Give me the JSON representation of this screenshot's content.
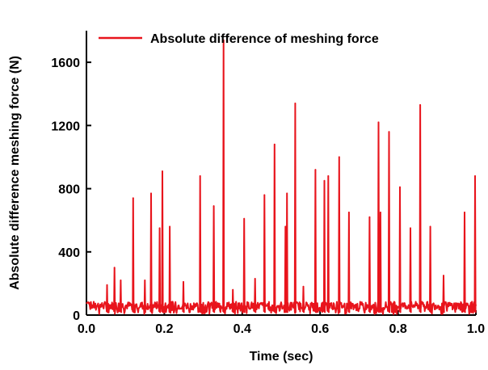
{
  "chart_data": {
    "type": "line",
    "title": "",
    "xlabel": "Time (sec)",
    "ylabel": "Absolute difference meshing force (N)",
    "xlim": [
      0.0,
      1.0
    ],
    "ylim": [
      0,
      1800
    ],
    "x_ticks": [
      0.0,
      0.2,
      0.4,
      0.6,
      0.8,
      1.0
    ],
    "x_tick_labels": [
      "0.0",
      "0.2",
      "0.4",
      "0.6",
      "0.8",
      "1.0"
    ],
    "y_ticks": [
      0,
      400,
      800,
      1200,
      1600
    ],
    "y_tick_labels": [
      "0",
      "400",
      "800",
      "1200",
      "1600"
    ],
    "grid": false,
    "legend_position": "top-left",
    "series": [
      {
        "name": "Absolute difference of meshing force",
        "color": "#e8141c",
        "baseline": 60,
        "baseline_noise": 50,
        "peaks": [
          {
            "x": 0.053,
            "y": 190
          },
          {
            "x": 0.072,
            "y": 300
          },
          {
            "x": 0.088,
            "y": 220
          },
          {
            "x": 0.12,
            "y": 740
          },
          {
            "x": 0.15,
            "y": 220
          },
          {
            "x": 0.166,
            "y": 770
          },
          {
            "x": 0.188,
            "y": 550
          },
          {
            "x": 0.195,
            "y": 910
          },
          {
            "x": 0.214,
            "y": 560
          },
          {
            "x": 0.249,
            "y": 210
          },
          {
            "x": 0.292,
            "y": 880
          },
          {
            "x": 0.327,
            "y": 690
          },
          {
            "x": 0.352,
            "y": 1740
          },
          {
            "x": 0.376,
            "y": 160
          },
          {
            "x": 0.405,
            "y": 610
          },
          {
            "x": 0.433,
            "y": 230
          },
          {
            "x": 0.457,
            "y": 760
          },
          {
            "x": 0.483,
            "y": 1080
          },
          {
            "x": 0.511,
            "y": 560
          },
          {
            "x": 0.515,
            "y": 770
          },
          {
            "x": 0.536,
            "y": 1340
          },
          {
            "x": 0.557,
            "y": 180
          },
          {
            "x": 0.588,
            "y": 920
          },
          {
            "x": 0.611,
            "y": 850
          },
          {
            "x": 0.621,
            "y": 880
          },
          {
            "x": 0.649,
            "y": 1000
          },
          {
            "x": 0.674,
            "y": 650
          },
          {
            "x": 0.727,
            "y": 620
          },
          {
            "x": 0.75,
            "y": 1220
          },
          {
            "x": 0.755,
            "y": 650
          },
          {
            "x": 0.777,
            "y": 1160
          },
          {
            "x": 0.805,
            "y": 810
          },
          {
            "x": 0.832,
            "y": 550
          },
          {
            "x": 0.857,
            "y": 1330
          },
          {
            "x": 0.883,
            "y": 560
          },
          {
            "x": 0.917,
            "y": 250
          },
          {
            "x": 0.971,
            "y": 650
          },
          {
            "x": 0.998,
            "y": 880
          }
        ]
      }
    ]
  }
}
